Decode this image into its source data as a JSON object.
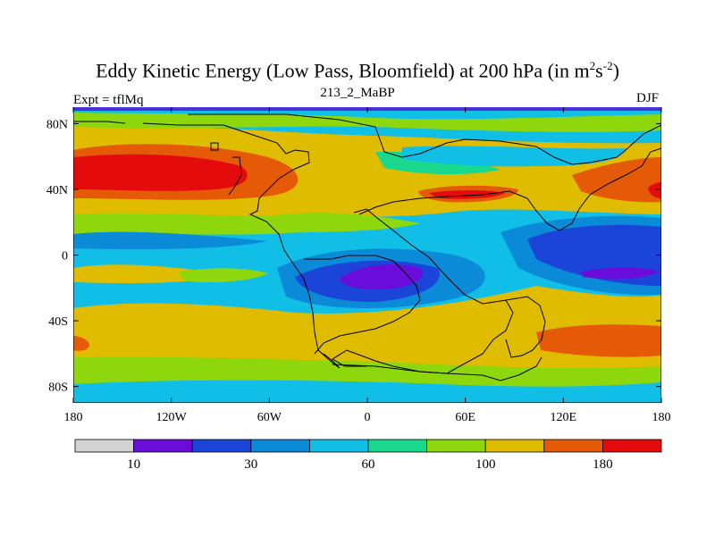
{
  "chart_data": {
    "type": "heatmap",
    "title_main": "Eddy Kinetic Energy (Low Pass, Bloomfield) at 200 hPa (in m",
    "title_sup1": "2",
    "title_mid": "s",
    "title_sup2": "-2",
    "title_end": ")",
    "subtitle": "213_2_MaBP",
    "left_label": "Expt = tflMq",
    "right_label": "DJF",
    "x_ticks": [
      {
        "label": "180",
        "value": -180
      },
      {
        "label": "120W",
        "value": -120
      },
      {
        "label": "60W",
        "value": -60
      },
      {
        "label": "0",
        "value": 0
      },
      {
        "label": "60E",
        "value": 60
      },
      {
        "label": "120E",
        "value": 120
      },
      {
        "label": "180",
        "value": 180
      }
    ],
    "y_ticks": [
      {
        "label": "80N",
        "value": 80
      },
      {
        "label": "40N",
        "value": 40
      },
      {
        "label": "0",
        "value": 0
      },
      {
        "label": "40S",
        "value": -40
      },
      {
        "label": "80S",
        "value": -80
      }
    ],
    "xlim": [
      -180,
      180
    ],
    "ylim": [
      -90,
      90
    ],
    "colorbar": {
      "colors": [
        "#d3d3d3",
        "#6a0ddb",
        "#1a45d8",
        "#0b8ad8",
        "#11bfe6",
        "#1ad88e",
        "#8ed70c",
        "#e0bc00",
        "#e55a07",
        "#e30b0b"
      ],
      "labels": [
        {
          "label": "10",
          "boundary": 1
        },
        {
          "label": "30",
          "boundary": 3
        },
        {
          "label": "60",
          "boundary": 5
        },
        {
          "label": "100",
          "boundary": 7
        },
        {
          "label": "180",
          "boundary": 9
        }
      ]
    }
  }
}
